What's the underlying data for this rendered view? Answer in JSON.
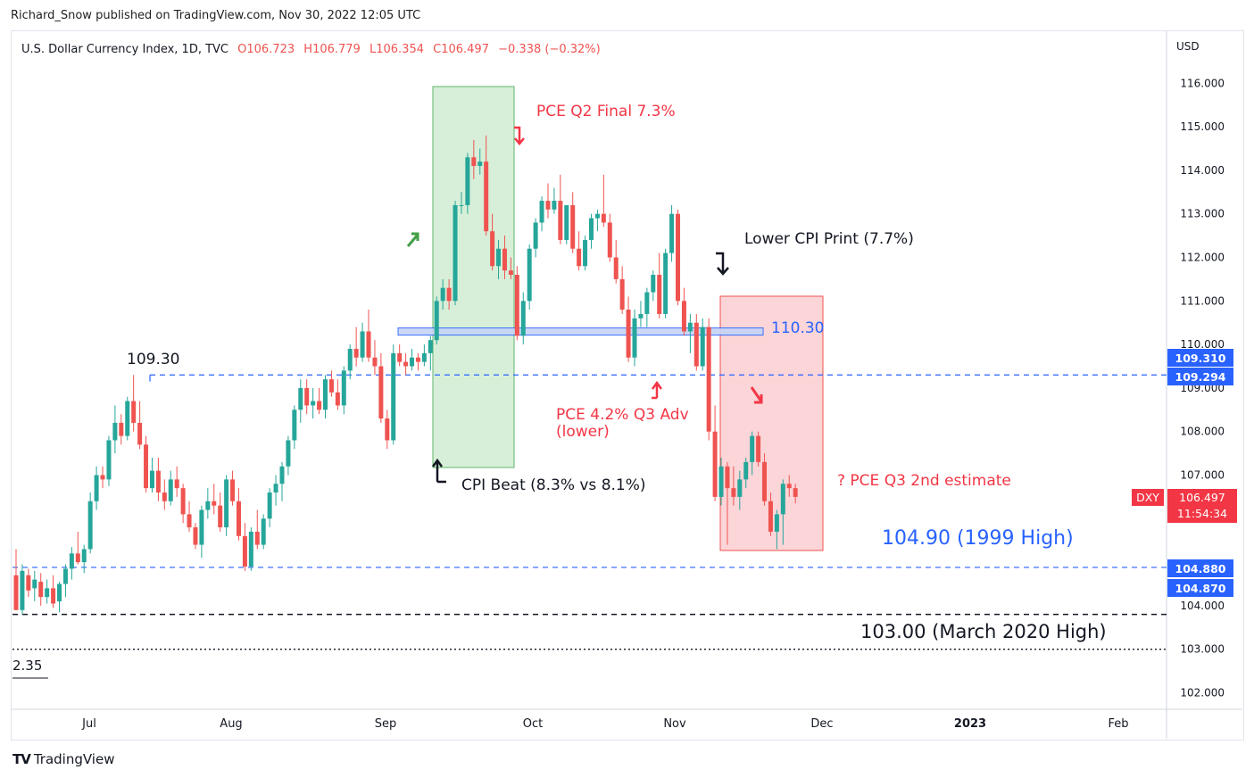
{
  "publisher": "Richard_Snow published on TradingView.com, Nov 30, 2022 12:05 UTC",
  "brand": {
    "logo_text": "TV",
    "name": "TradingView"
  },
  "colors": {
    "up": "#26a69a",
    "down": "#ef5350",
    "blue": "#2962ff",
    "label_red": "#f23645",
    "green_box": "#d7efd8",
    "red_box": "#fbd5d8"
  },
  "chart_data": {
    "type": "candlestick",
    "symbol_line": {
      "name": "U.S. Dollar Currency Index, 1D, TVC",
      "open": "O106.723",
      "high": "H106.779",
      "low": "L106.354",
      "close": "C106.497",
      "change": "−0.338 (−0.32%)"
    },
    "currency": "USD",
    "y_ticks": [
      "116.000",
      "115.000",
      "114.000",
      "113.000",
      "112.000",
      "111.000",
      "110.000",
      "109.000",
      "108.000",
      "107.000",
      "104.000",
      "103.000",
      "102.000"
    ],
    "x_ticks": [
      "Jul",
      "Aug",
      "Sep",
      "Oct",
      "Nov",
      "Dec",
      "2023",
      "Feb"
    ],
    "ylim": [
      101.8,
      116.8
    ],
    "price_badges": [
      {
        "label": "109.310",
        "value": 109.31,
        "color": "#2962ff"
      },
      {
        "label": "109.294",
        "value": 109.294,
        "color": "#2962ff"
      },
      {
        "label": "104.880",
        "value": 104.88,
        "color": "#2962ff"
      },
      {
        "label": "104.870",
        "value": 104.87,
        "color": "#2962ff"
      }
    ],
    "last_price": {
      "symbol": "DXY",
      "price": "106.497",
      "countdown": "11:54:34",
      "value": 106.497
    },
    "levels": [
      {
        "value": 109.3,
        "label": "109.30",
        "style": "dashed-blue"
      },
      {
        "value": 104.88,
        "label": "104.90 (1999 High)",
        "style": "dashed-blue"
      },
      {
        "value": 103.8,
        "label": "",
        "style": "dashed-black"
      },
      {
        "value": 103.0,
        "label": "103.00 (March 2020 High)",
        "style": "dotted-black"
      },
      {
        "value": 110.3,
        "label": "110.30",
        "style": "zone"
      }
    ],
    "partial_label": "2.35",
    "annotations": [
      {
        "text": "PCE Q2 Final 7.3%",
        "color": "#f23645"
      },
      {
        "text": "Lower CPI Print (7.7%)",
        "color": "#131722"
      },
      {
        "text": "PCE 4.2% Q3 Adv",
        "color": "#f23645"
      },
      {
        "text": "(lower)",
        "color": "#f23645"
      },
      {
        "text": "? PCE Q3 2nd estimate",
        "color": "#f23645"
      },
      {
        "text": "CPI Beat (8.3% vs 8.1%)",
        "color": "#131722"
      }
    ],
    "candles": [
      {
        "o": 104.7,
        "h": 105.3,
        "l": 103.9,
        "c": 103.9
      },
      {
        "o": 103.9,
        "h": 104.95,
        "l": 103.8,
        "c": 104.8
      },
      {
        "o": 104.7,
        "h": 104.85,
        "l": 104.2,
        "c": 104.35
      },
      {
        "o": 104.4,
        "h": 104.8,
        "l": 104.1,
        "c": 104.6
      },
      {
        "o": 104.55,
        "h": 104.75,
        "l": 104.0,
        "c": 104.2
      },
      {
        "o": 104.2,
        "h": 104.6,
        "l": 104.05,
        "c": 104.4
      },
      {
        "o": 104.4,
        "h": 104.7,
        "l": 103.95,
        "c": 104.05
      },
      {
        "o": 104.1,
        "h": 104.55,
        "l": 103.85,
        "c": 104.5
      },
      {
        "o": 104.5,
        "h": 104.95,
        "l": 104.2,
        "c": 104.85
      },
      {
        "o": 104.85,
        "h": 105.35,
        "l": 104.6,
        "c": 105.2
      },
      {
        "o": 105.2,
        "h": 105.7,
        "l": 104.95,
        "c": 105.0
      },
      {
        "o": 105.0,
        "h": 105.4,
        "l": 104.75,
        "c": 105.3
      },
      {
        "o": 105.3,
        "h": 106.6,
        "l": 105.2,
        "c": 106.4
      },
      {
        "o": 106.4,
        "h": 107.2,
        "l": 106.2,
        "c": 107.0
      },
      {
        "o": 107.0,
        "h": 107.2,
        "l": 106.7,
        "c": 106.9
      },
      {
        "o": 106.9,
        "h": 107.9,
        "l": 106.75,
        "c": 107.8
      },
      {
        "o": 107.8,
        "h": 108.6,
        "l": 107.5,
        "c": 108.2
      },
      {
        "o": 108.2,
        "h": 108.4,
        "l": 107.7,
        "c": 107.9
      },
      {
        "o": 107.9,
        "h": 108.8,
        "l": 107.8,
        "c": 108.7
      },
      {
        "o": 108.7,
        "h": 109.3,
        "l": 108.0,
        "c": 108.2
      },
      {
        "o": 108.2,
        "h": 108.7,
        "l": 107.6,
        "c": 107.7
      },
      {
        "o": 107.7,
        "h": 107.9,
        "l": 106.6,
        "c": 106.7
      },
      {
        "o": 106.7,
        "h": 107.4,
        "l": 106.6,
        "c": 107.1
      },
      {
        "o": 107.1,
        "h": 107.4,
        "l": 106.4,
        "c": 106.6
      },
      {
        "o": 106.6,
        "h": 106.9,
        "l": 106.2,
        "c": 106.4
      },
      {
        "o": 106.4,
        "h": 107.1,
        "l": 106.3,
        "c": 106.9
      },
      {
        "o": 106.9,
        "h": 107.2,
        "l": 106.5,
        "c": 106.7
      },
      {
        "o": 106.7,
        "h": 106.8,
        "l": 105.9,
        "c": 106.1
      },
      {
        "o": 106.1,
        "h": 106.4,
        "l": 105.7,
        "c": 105.8
      },
      {
        "o": 105.8,
        "h": 105.9,
        "l": 105.3,
        "c": 105.4
      },
      {
        "o": 105.4,
        "h": 106.3,
        "l": 105.1,
        "c": 106.2
      },
      {
        "o": 106.2,
        "h": 106.7,
        "l": 106.0,
        "c": 106.4
      },
      {
        "o": 106.4,
        "h": 106.8,
        "l": 106.1,
        "c": 106.3
      },
      {
        "o": 106.3,
        "h": 106.6,
        "l": 105.7,
        "c": 105.8
      },
      {
        "o": 105.8,
        "h": 107.0,
        "l": 105.6,
        "c": 106.9
      },
      {
        "o": 106.9,
        "h": 107.1,
        "l": 106.3,
        "c": 106.4
      },
      {
        "o": 106.4,
        "h": 106.7,
        "l": 105.5,
        "c": 105.6
      },
      {
        "o": 105.6,
        "h": 105.9,
        "l": 104.8,
        "c": 104.9
      },
      {
        "o": 104.9,
        "h": 105.8,
        "l": 104.8,
        "c": 105.7
      },
      {
        "o": 105.7,
        "h": 106.2,
        "l": 105.3,
        "c": 105.4
      },
      {
        "o": 105.4,
        "h": 106.1,
        "l": 105.3,
        "c": 106.0
      },
      {
        "o": 106.0,
        "h": 106.7,
        "l": 105.8,
        "c": 106.6
      },
      {
        "o": 106.6,
        "h": 107.0,
        "l": 106.3,
        "c": 106.8
      },
      {
        "o": 106.8,
        "h": 107.3,
        "l": 106.4,
        "c": 107.2
      },
      {
        "o": 107.2,
        "h": 107.9,
        "l": 107.0,
        "c": 107.8
      },
      {
        "o": 107.8,
        "h": 108.6,
        "l": 107.6,
        "c": 108.5
      },
      {
        "o": 108.5,
        "h": 109.2,
        "l": 108.2,
        "c": 109.0
      },
      {
        "o": 109.0,
        "h": 109.2,
        "l": 108.4,
        "c": 108.6
      },
      {
        "o": 108.6,
        "h": 109.0,
        "l": 108.3,
        "c": 108.7
      },
      {
        "o": 108.7,
        "h": 109.0,
        "l": 108.4,
        "c": 108.5
      },
      {
        "o": 108.5,
        "h": 109.3,
        "l": 108.3,
        "c": 109.2
      },
      {
        "o": 109.2,
        "h": 109.4,
        "l": 108.8,
        "c": 108.9
      },
      {
        "o": 108.9,
        "h": 109.2,
        "l": 108.5,
        "c": 108.6
      },
      {
        "o": 108.6,
        "h": 109.5,
        "l": 108.4,
        "c": 109.4
      },
      {
        "o": 109.4,
        "h": 110.0,
        "l": 109.2,
        "c": 109.9
      },
      {
        "o": 109.9,
        "h": 110.4,
        "l": 109.5,
        "c": 109.7
      },
      {
        "o": 109.7,
        "h": 110.5,
        "l": 109.6,
        "c": 110.3
      },
      {
        "o": 110.3,
        "h": 110.8,
        "l": 109.6,
        "c": 109.7
      },
      {
        "o": 109.7,
        "h": 110.1,
        "l": 109.3,
        "c": 109.5
      },
      {
        "o": 109.5,
        "h": 109.8,
        "l": 108.2,
        "c": 108.3
      },
      {
        "o": 108.3,
        "h": 108.5,
        "l": 107.6,
        "c": 107.8
      },
      {
        "o": 107.8,
        "h": 110.0,
        "l": 107.7,
        "c": 109.8
      },
      {
        "o": 109.8,
        "h": 110.0,
        "l": 109.5,
        "c": 109.6
      },
      {
        "o": 109.6,
        "h": 109.8,
        "l": 109.3,
        "c": 109.5
      },
      {
        "o": 109.5,
        "h": 109.9,
        "l": 109.4,
        "c": 109.7
      },
      {
        "o": 109.7,
        "h": 109.8,
        "l": 109.4,
        "c": 109.6
      },
      {
        "o": 109.6,
        "h": 110.0,
        "l": 109.5,
        "c": 109.8
      },
      {
        "o": 109.8,
        "h": 110.2,
        "l": 109.4,
        "c": 110.1
      },
      {
        "o": 110.1,
        "h": 111.1,
        "l": 110.0,
        "c": 111.0
      },
      {
        "o": 111.0,
        "h": 111.5,
        "l": 110.8,
        "c": 111.3
      },
      {
        "o": 111.3,
        "h": 111.5,
        "l": 110.8,
        "c": 111.0
      },
      {
        "o": 111.0,
        "h": 113.3,
        "l": 110.9,
        "c": 113.2
      },
      {
        "o": 113.2,
        "h": 113.5,
        "l": 113.0,
        "c": 113.2
      },
      {
        "o": 113.2,
        "h": 114.4,
        "l": 113.0,
        "c": 114.3
      },
      {
        "o": 114.3,
        "h": 114.7,
        "l": 113.8,
        "c": 114.1
      },
      {
        "o": 114.1,
        "h": 114.5,
        "l": 113.9,
        "c": 114.2
      },
      {
        "o": 114.2,
        "h": 114.8,
        "l": 112.5,
        "c": 112.6
      },
      {
        "o": 112.6,
        "h": 113.0,
        "l": 111.7,
        "c": 111.8
      },
      {
        "o": 111.8,
        "h": 112.4,
        "l": 111.5,
        "c": 112.2
      },
      {
        "o": 112.2,
        "h": 112.5,
        "l": 111.5,
        "c": 111.7
      },
      {
        "o": 111.7,
        "h": 112.0,
        "l": 111.5,
        "c": 111.6
      },
      {
        "o": 111.6,
        "h": 111.8,
        "l": 110.1,
        "c": 110.2
      },
      {
        "o": 110.2,
        "h": 111.2,
        "l": 110.0,
        "c": 111.0
      },
      {
        "o": 111.0,
        "h": 112.3,
        "l": 110.8,
        "c": 112.2
      },
      {
        "o": 112.2,
        "h": 112.9,
        "l": 112.0,
        "c": 112.8
      },
      {
        "o": 112.8,
        "h": 113.4,
        "l": 112.6,
        "c": 113.3
      },
      {
        "o": 113.3,
        "h": 113.7,
        "l": 112.9,
        "c": 113.1
      },
      {
        "o": 113.1,
        "h": 113.6,
        "l": 113.0,
        "c": 113.3
      },
      {
        "o": 113.3,
        "h": 113.9,
        "l": 112.3,
        "c": 112.4
      },
      {
        "o": 112.4,
        "h": 113.2,
        "l": 112.3,
        "c": 113.2
      },
      {
        "o": 113.2,
        "h": 113.5,
        "l": 112.1,
        "c": 112.2
      },
      {
        "o": 112.2,
        "h": 112.6,
        "l": 111.7,
        "c": 111.8
      },
      {
        "o": 111.8,
        "h": 112.5,
        "l": 111.7,
        "c": 112.4
      },
      {
        "o": 112.4,
        "h": 113.0,
        "l": 112.2,
        "c": 112.9
      },
      {
        "o": 112.9,
        "h": 113.1,
        "l": 112.6,
        "c": 113.0
      },
      {
        "o": 113.0,
        "h": 113.9,
        "l": 112.7,
        "c": 112.8
      },
      {
        "o": 112.8,
        "h": 113.0,
        "l": 111.9,
        "c": 112.0
      },
      {
        "o": 112.0,
        "h": 112.4,
        "l": 111.4,
        "c": 111.5
      },
      {
        "o": 111.5,
        "h": 111.8,
        "l": 110.7,
        "c": 110.8
      },
      {
        "o": 110.8,
        "h": 111.1,
        "l": 109.6,
        "c": 109.7
      },
      {
        "o": 109.7,
        "h": 110.8,
        "l": 109.5,
        "c": 110.6
      },
      {
        "o": 110.6,
        "h": 111.0,
        "l": 110.4,
        "c": 110.7
      },
      {
        "o": 110.7,
        "h": 111.3,
        "l": 110.4,
        "c": 111.2
      },
      {
        "o": 111.2,
        "h": 111.7,
        "l": 111.0,
        "c": 111.6
      },
      {
        "o": 111.6,
        "h": 112.1,
        "l": 110.6,
        "c": 110.7
      },
      {
        "o": 110.7,
        "h": 112.2,
        "l": 110.6,
        "c": 112.1
      },
      {
        "o": 112.1,
        "h": 113.2,
        "l": 111.9,
        "c": 113.0
      },
      {
        "o": 113.0,
        "h": 113.1,
        "l": 110.9,
        "c": 111.0
      },
      {
        "o": 111.0,
        "h": 111.3,
        "l": 110.2,
        "c": 110.3
      },
      {
        "o": 110.3,
        "h": 110.7,
        "l": 109.8,
        "c": 110.5
      },
      {
        "o": 110.5,
        "h": 110.7,
        "l": 109.4,
        "c": 109.5
      },
      {
        "o": 109.5,
        "h": 110.6,
        "l": 109.4,
        "c": 110.4
      },
      {
        "o": 110.4,
        "h": 110.6,
        "l": 107.8,
        "c": 108.0
      },
      {
        "o": 108.0,
        "h": 108.6,
        "l": 106.4,
        "c": 106.5
      },
      {
        "o": 106.5,
        "h": 107.4,
        "l": 106.3,
        "c": 107.2
      },
      {
        "o": 107.2,
        "h": 107.3,
        "l": 105.4,
        "c": 106.7
      },
      {
        "o": 106.7,
        "h": 107.2,
        "l": 106.3,
        "c": 106.5
      },
      {
        "o": 106.5,
        "h": 107.1,
        "l": 106.2,
        "c": 106.9
      },
      {
        "o": 106.9,
        "h": 107.4,
        "l": 106.7,
        "c": 107.3
      },
      {
        "o": 107.3,
        "h": 108.0,
        "l": 107.0,
        "c": 107.9
      },
      {
        "o": 107.9,
        "h": 108.0,
        "l": 107.2,
        "c": 107.3
      },
      {
        "o": 107.3,
        "h": 107.5,
        "l": 106.3,
        "c": 106.4
      },
      {
        "o": 106.4,
        "h": 106.6,
        "l": 105.6,
        "c": 105.7
      },
      {
        "o": 105.7,
        "h": 106.2,
        "l": 105.3,
        "c": 106.1
      },
      {
        "o": 106.1,
        "h": 106.9,
        "l": 105.4,
        "c": 106.8
      },
      {
        "o": 106.8,
        "h": 107.0,
        "l": 106.5,
        "c": 106.7
      },
      {
        "o": 106.7,
        "h": 106.8,
        "l": 106.35,
        "c": 106.5
      }
    ]
  }
}
